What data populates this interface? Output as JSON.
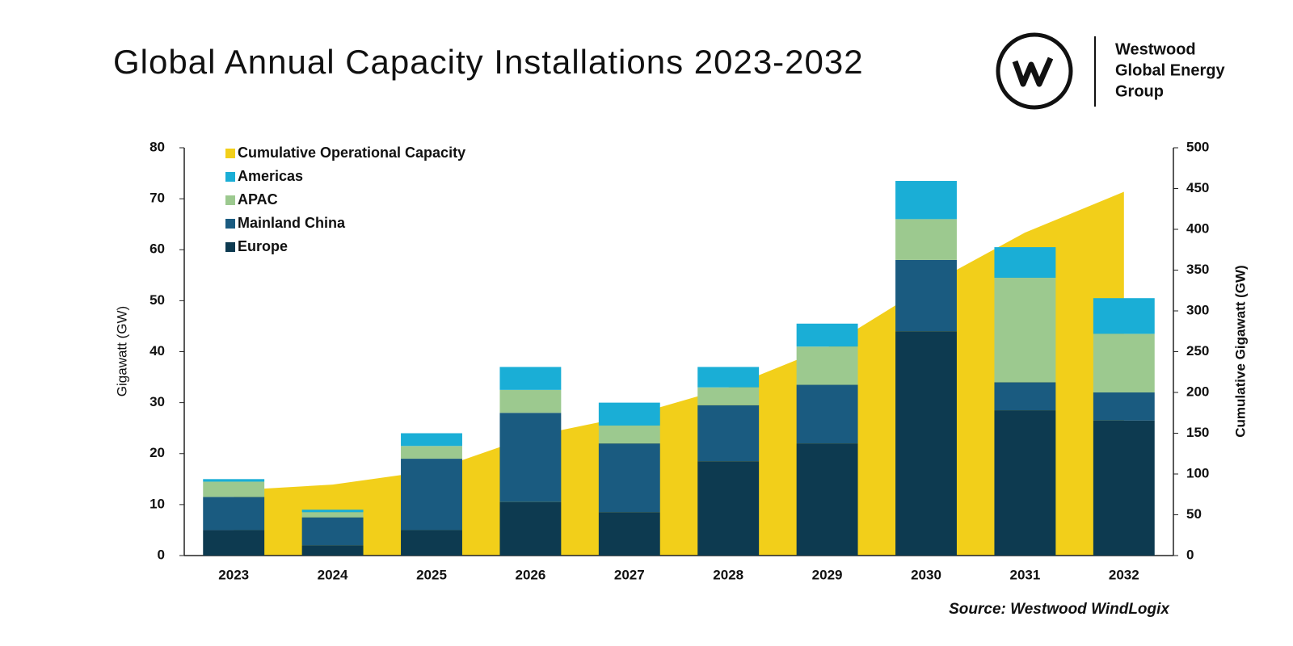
{
  "chart_data": {
    "type": "bar",
    "title": "Global Annual Capacity Installations 2023-2032",
    "brand": [
      "Westwood",
      "Global Energy",
      "Group"
    ],
    "source": "Source: Westwood WindLogix",
    "y_label": "Gigawatt (GW)",
    "y2_label": "Cumulative Gigawatt (GW)",
    "stacked": true,
    "legend": "upper left",
    "categories": [
      "2023",
      "2024",
      "2025",
      "2026",
      "2027",
      "2028",
      "2029",
      "2030",
      "2031",
      "2032"
    ],
    "series": [
      {
        "name": "Europe",
        "color": "#0d3a50",
        "values": [
          5,
          2,
          5,
          10.5,
          8.5,
          18.5,
          22,
          44,
          28.5,
          26.5
        ]
      },
      {
        "name": "Mainland China",
        "color": "#1a5b80",
        "values": [
          6.5,
          5.5,
          14,
          17.5,
          13.5,
          11,
          11.5,
          14,
          5.5,
          5.5
        ]
      },
      {
        "name": "APAC",
        "color": "#9cc98f",
        "values": [
          3,
          1,
          2.5,
          4.5,
          3.5,
          3.5,
          7.5,
          8,
          20.5,
          11.5
        ]
      },
      {
        "name": "Americas",
        "color": "#1aaed6",
        "values": [
          0.5,
          0.5,
          2.5,
          4.5,
          4.5,
          4,
          4.5,
          7.5,
          6,
          7
        ]
      },
      {
        "name": "Cumulative Operational Capacity",
        "color": "#f2cf1a",
        "type": "area",
        "axis": "y2",
        "values": [
          80,
          87,
          104,
          146,
          171,
          206,
          255,
          330,
          396,
          446
        ]
      }
    ],
    "ylim": [
      0,
      80
    ],
    "yticks": [
      0,
      10,
      20,
      30,
      40,
      50,
      60,
      70,
      80
    ],
    "y2lim": [
      0,
      500
    ],
    "y2ticks": [
      0,
      50,
      100,
      150,
      200,
      250,
      300,
      350,
      400,
      450,
      500
    ]
  }
}
